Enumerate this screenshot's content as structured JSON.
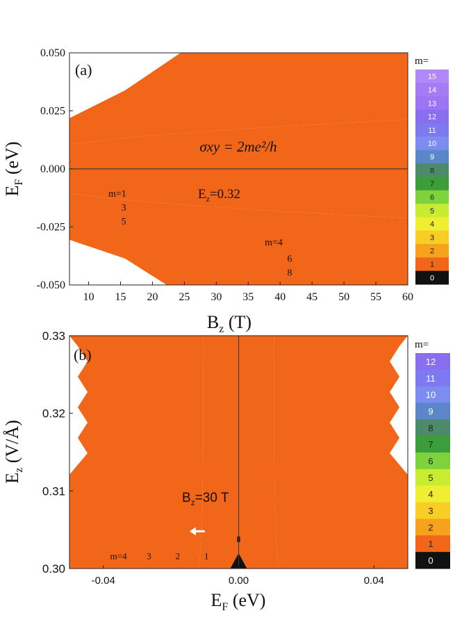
{
  "chart_data": [
    {
      "type": "heatmap",
      "panel_label": "(a)",
      "xlabel_main": "B",
      "xlabel_sub": "z",
      "xlabel_unit": " (T)",
      "ylabel_main": "E",
      "ylabel_sub": "F",
      "ylabel_unit": " (eV)",
      "xlim": [
        7,
        60
      ],
      "ylim": [
        -0.05,
        0.05
      ],
      "x_ticks": [
        10,
        15,
        20,
        25,
        30,
        35,
        40,
        45,
        50,
        55,
        60
      ],
      "x_tick_labels": [
        "10",
        "15",
        "20",
        "25",
        "30",
        "35",
        "40",
        "45",
        "50",
        "55",
        "60"
      ],
      "y_ticks": [
        0.05,
        0.025,
        0.0,
        -0.025,
        -0.05
      ],
      "y_tick_labels": [
        "0.050",
        "0.025",
        "0.000",
        "-0.025",
        "-0.050"
      ],
      "colorbar_title": "m=",
      "colorbar_levels": [
        15,
        14,
        13,
        12,
        11,
        10,
        9,
        8,
        7,
        6,
        5,
        4,
        3,
        2,
        1,
        0
      ],
      "colorbar_labels": [
        "15",
        "14",
        "13",
        "12",
        "11",
        "10",
        "9",
        "8",
        "7",
        "6",
        "5",
        "4",
        "3",
        "2",
        "1",
        "0"
      ],
      "annotation_formula": "σxy = 2me²/h",
      "annotation_field_main": "E",
      "annotation_field_sub": "z",
      "annotation_field_value": "=0.32",
      "band_labels": [
        {
          "text": "m=1",
          "x": 14.5,
          "y": -0.012
        },
        {
          "text": "3",
          "x": 15.5,
          "y": -0.018
        },
        {
          "text": "5",
          "x": 15.5,
          "y": -0.024
        },
        {
          "text": "m=4",
          "x": 39,
          "y": -0.033
        },
        {
          "text": "6",
          "x": 41.5,
          "y": -0.04
        },
        {
          "text": "8",
          "x": 41.5,
          "y": -0.046
        }
      ],
      "gap_center_line": 0.0
    },
    {
      "type": "heatmap",
      "panel_label": "(b)",
      "xlabel_main": "E",
      "xlabel_sub": "F",
      "xlabel_unit": " (eV)",
      "ylabel_main": "E",
      "ylabel_sub": "z",
      "ylabel_unit": " (V/Å)",
      "xlim": [
        -0.05,
        0.05
      ],
      "ylim": [
        0.3,
        0.33
      ],
      "x_ticks": [
        -0.04,
        0.0,
        0.04
      ],
      "x_tick_labels": [
        "-0.04",
        "0.00",
        "0.04"
      ],
      "y_ticks": [
        0.33,
        0.32,
        0.31,
        0.3
      ],
      "y_tick_labels": [
        "0.33",
        "0.32",
        "0.31",
        "0.30"
      ],
      "colorbar_title": "m=",
      "colorbar_levels": [
        12,
        11,
        10,
        9,
        8,
        7,
        6,
        5,
        4,
        3,
        2,
        1,
        0
      ],
      "colorbar_labels": [
        "12",
        "11",
        "10",
        "9",
        "8",
        "7",
        "6",
        "5",
        "4",
        "3",
        "2",
        "1",
        "0"
      ],
      "annotation_field_main": "B",
      "annotation_field_sub": "z",
      "annotation_field_value": "=30 T",
      "band_labels": [
        {
          "text": "m=4",
          "x": -0.0355,
          "y": 0.3012
        },
        {
          "text": "3",
          "x": -0.0265,
          "y": 0.3012
        },
        {
          "text": "2",
          "x": -0.018,
          "y": 0.3012
        },
        {
          "text": "1",
          "x": -0.0095,
          "y": 0.3012
        }
      ],
      "arrow_at": {
        "x": -0.0145,
        "y": 0.3048
      }
    }
  ],
  "colors": {
    "m0": "#111111",
    "m1": "#f2661a",
    "m2": "#f7a21c",
    "m3": "#f7cd26",
    "m4": "#f0ee32",
    "m5": "#c8ec32",
    "m6": "#7ed23c",
    "m7": "#3c9e3a",
    "m8": "#4d8a6a",
    "m9": "#5b86c8",
    "m10": "#7d8cf0",
    "m11": "#7d79f0",
    "m12": "#8a6ef0",
    "m13": "#9c74f4",
    "m14": "#a67cf4",
    "m15": "#b088f8"
  }
}
